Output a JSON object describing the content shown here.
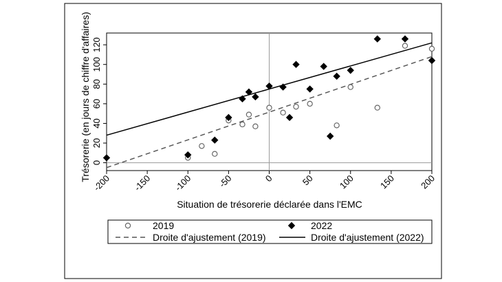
{
  "chart_data": {
    "type": "scatter",
    "title": "",
    "xlabel": "Situation de trésorerie déclarée dans l'EMC",
    "ylabel": "Trésorerie (en jours de chiffre d'affaires)",
    "xlim": [
      -200,
      200
    ],
    "ylim": [
      -8,
      132
    ],
    "xticks": [
      -200,
      -150,
      -100,
      -50,
      0,
      50,
      100,
      150,
      200
    ],
    "yticks": [
      0,
      20,
      40,
      60,
      80,
      100,
      120
    ],
    "reference_lines": {
      "x": 0,
      "y": 0
    },
    "series": [
      {
        "name": "2019",
        "kind": "scatter",
        "marker": "hollow-circle",
        "color": "#777777",
        "points": [
          [
            -100,
            5
          ],
          [
            -83,
            17
          ],
          [
            -67,
            9
          ],
          [
            -50,
            43
          ],
          [
            -33,
            39
          ],
          [
            -25,
            49
          ],
          [
            -17,
            37
          ],
          [
            0,
            56
          ],
          [
            17,
            51
          ],
          [
            33,
            57
          ],
          [
            50,
            60
          ],
          [
            83,
            38
          ],
          [
            100,
            77
          ],
          [
            133,
            56
          ],
          [
            167,
            119
          ],
          [
            200,
            116
          ]
        ]
      },
      {
        "name": "2022",
        "kind": "scatter",
        "marker": "filled-diamond",
        "color": "#000000",
        "points": [
          [
            -200,
            5
          ],
          [
            -100,
            8
          ],
          [
            -67,
            23
          ],
          [
            -50,
            46
          ],
          [
            -33,
            65
          ],
          [
            -25,
            72
          ],
          [
            -17,
            67
          ],
          [
            0,
            78
          ],
          [
            17,
            77
          ],
          [
            25,
            46
          ],
          [
            33,
            100
          ],
          [
            50,
            75
          ],
          [
            67,
            98
          ],
          [
            75,
            27
          ],
          [
            83,
            88
          ],
          [
            100,
            94
          ],
          [
            133,
            126
          ],
          [
            167,
            126
          ],
          [
            200,
            104
          ]
        ]
      },
      {
        "name": "Droite d'ajustement (2019)",
        "kind": "line",
        "style": "dashed",
        "color": "#555555",
        "points": [
          [
            -200,
            -5
          ],
          [
            200,
            108
          ]
        ]
      },
      {
        "name": "Droite d'ajustement (2022)",
        "kind": "line",
        "style": "solid",
        "color": "#000000",
        "points": [
          [
            -200,
            28
          ],
          [
            200,
            122
          ]
        ]
      }
    ],
    "legend": {
      "placement": "bottom",
      "items": [
        {
          "label": "2019",
          "symbol": "hollow-circle"
        },
        {
          "label": "2022",
          "symbol": "filled-diamond"
        },
        {
          "label": "Droite d'ajustement (2019)",
          "symbol": "dashed-line"
        },
        {
          "label": "Droite d'ajustement (2022)",
          "symbol": "solid-line"
        }
      ]
    }
  }
}
